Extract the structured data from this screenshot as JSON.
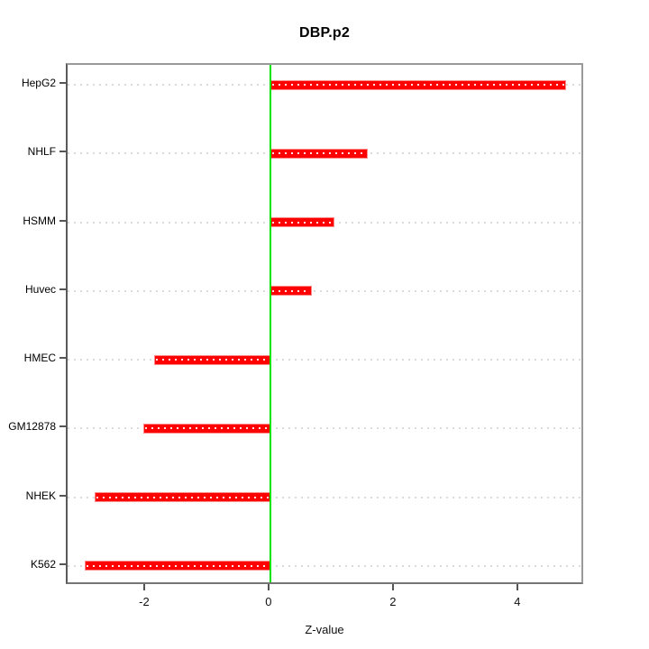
{
  "title": "DBP.p2",
  "x_axis": {
    "label": "Z-value",
    "ticks": [
      "-2",
      "0",
      "2",
      "4"
    ]
  },
  "chart_data": {
    "type": "bar",
    "orientation": "horizontal",
    "title": "DBP.p2",
    "xlabel": "Z-value",
    "ylabel": "",
    "categories": [
      "HepG2",
      "NHLF",
      "HSMM",
      "Huvec",
      "HMEC",
      "GM12878",
      "NHEK",
      "K562"
    ],
    "values": [
      4.76,
      1.57,
      1.03,
      0.67,
      -1.87,
      -2.04,
      -2.83,
      -2.99
    ],
    "xlim": [
      -3.26,
      5.06
    ],
    "xticks": [
      -2,
      0,
      2,
      4
    ],
    "grid": "dotted-horizontal-per-category",
    "legend": "none",
    "zero_line": 0,
    "colors": {
      "bar_fill": "#fe0000",
      "bar_edge": "#ff8a8a",
      "bar_center_dots": "#ffffff",
      "zero_line": "#00e306",
      "gridline": "#dadada",
      "box_border": "#8a8a8a",
      "tick": "#555555",
      "text": "#000000",
      "background": "#ffffff"
    }
  }
}
